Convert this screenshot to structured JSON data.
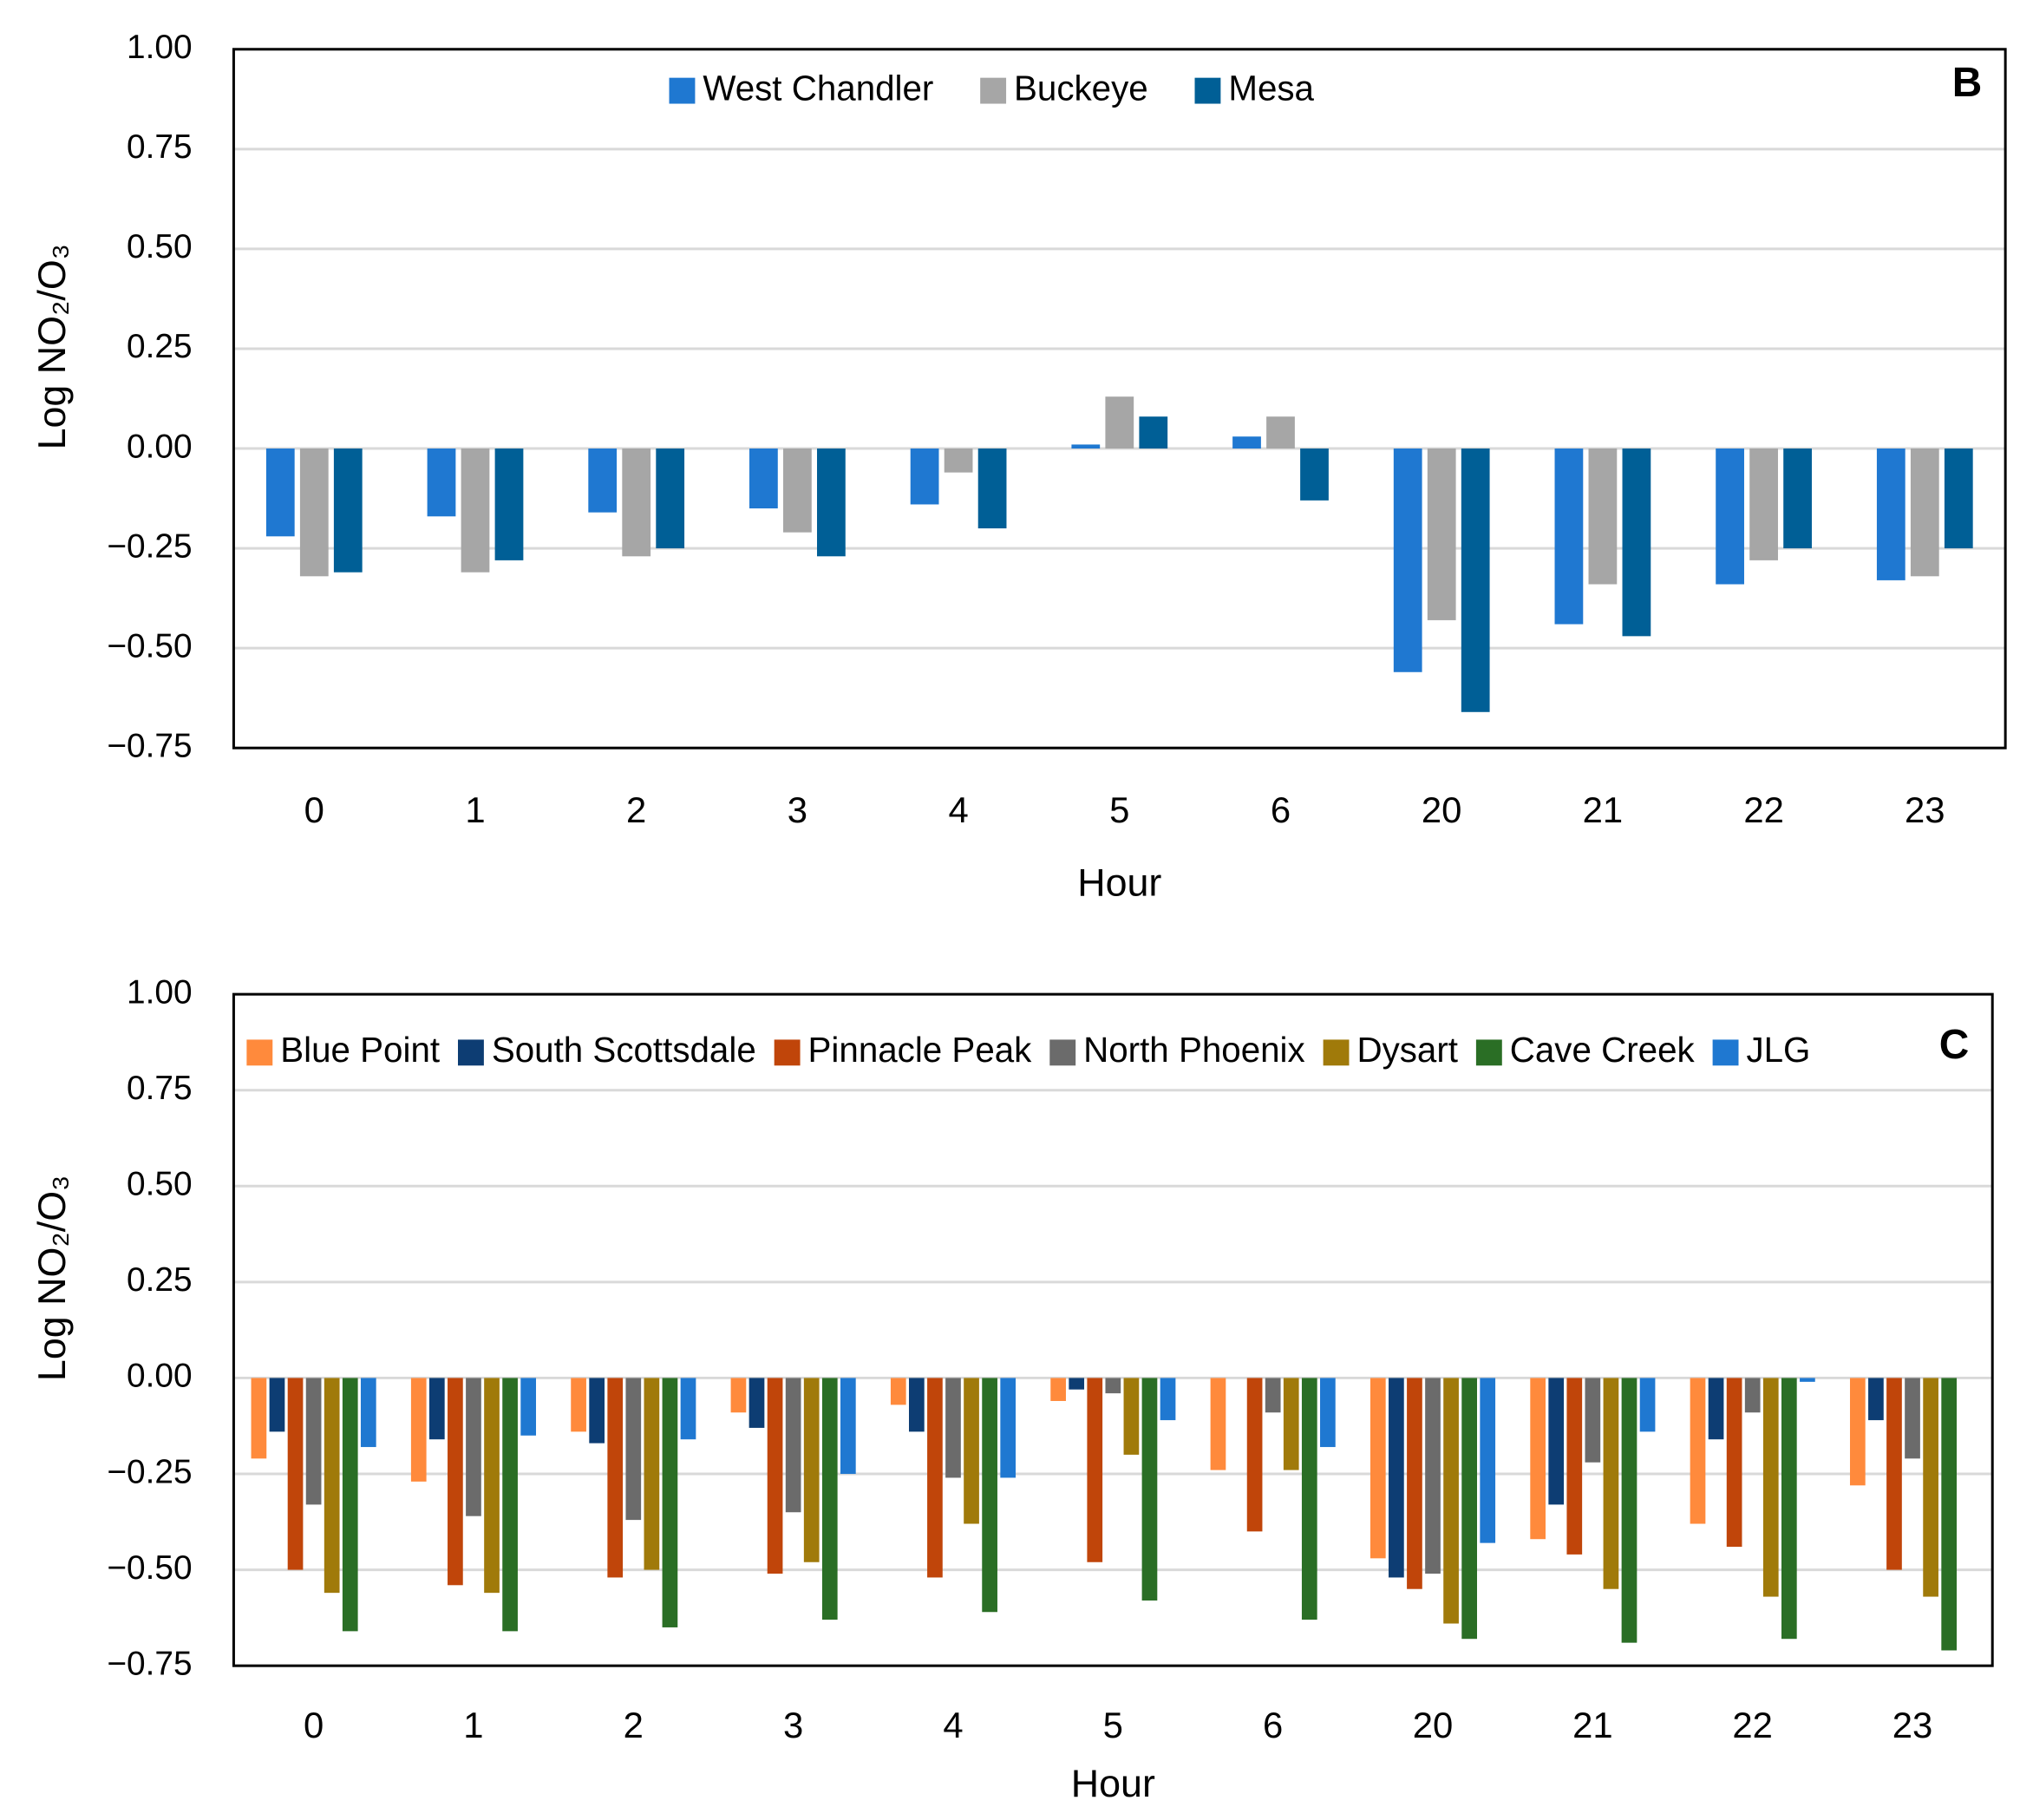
{
  "chart_data": [
    {
      "type": "bar",
      "panel_label": "B",
      "x_label": "Hour",
      "y_label": "Log NO₂/O₃",
      "legend": "top",
      "grid": true,
      "categories": [
        "0",
        "1",
        "2",
        "3",
        "4",
        "5",
        "6",
        "20",
        "21",
        "22",
        "23"
      ],
      "ylim": [
        -0.75,
        1.0
      ],
      "yticks": [
        {
          "value": 1.0,
          "label": "1.00"
        },
        {
          "value": 0.75,
          "label": "0.75"
        },
        {
          "value": 0.5,
          "label": "0.50"
        },
        {
          "value": 0.25,
          "label": "0.25"
        },
        {
          "value": 0,
          "label": "0.00"
        },
        {
          "value": -0.25,
          "label": "−0.25"
        },
        {
          "value": -0.5,
          "label": "−0.50"
        },
        {
          "value": -0.75,
          "label": "−0.75"
        }
      ],
      "series": [
        {
          "name": "West Chandler",
          "color": "#1f78d1",
          "values": [
            -0.22,
            -0.17,
            -0.16,
            -0.15,
            -0.14,
            0.01,
            0.03,
            -0.56,
            -0.44,
            -0.34,
            -0.33
          ]
        },
        {
          "name": "Buckeye",
          "color": "#a6a6a6",
          "values": [
            -0.32,
            -0.31,
            -0.27,
            -0.21,
            -0.06,
            0.13,
            0.08,
            -0.43,
            -0.34,
            -0.28,
            -0.32
          ]
        },
        {
          "name": "Mesa",
          "color": "#005f96",
          "values": [
            -0.31,
            -0.28,
            -0.25,
            -0.27,
            -0.2,
            0.08,
            -0.13,
            -0.66,
            -0.47,
            -0.25,
            -0.25
          ]
        }
      ]
    },
    {
      "type": "bar",
      "panel_label": "C",
      "x_label": "Hour",
      "y_label": "Log NO₂/O₃",
      "legend": "top",
      "grid": true,
      "categories": [
        "0",
        "1",
        "2",
        "3",
        "4",
        "5",
        "6",
        "20",
        "21",
        "22",
        "23"
      ],
      "ylim": [
        -0.75,
        1.0
      ],
      "yticks": [
        {
          "value": 1.0,
          "label": "1.00"
        },
        {
          "value": 0.75,
          "label": "0.75"
        },
        {
          "value": 0.5,
          "label": "0.50"
        },
        {
          "value": 0.25,
          "label": "0.25"
        },
        {
          "value": 0,
          "label": "0.00"
        },
        {
          "value": -0.25,
          "label": "−0.25"
        },
        {
          "value": -0.5,
          "label": "−0.50"
        },
        {
          "value": -0.75,
          "label": "−0.75"
        }
      ],
      "series": [
        {
          "name": "Blue Point",
          "color": "#ff8a3c",
          "values": [
            -0.21,
            -0.27,
            -0.14,
            -0.09,
            -0.07,
            -0.06,
            -0.24,
            -0.47,
            -0.42,
            -0.38,
            -0.28
          ]
        },
        {
          "name": "South Scottsdale",
          "color": "#0d3d73",
          "values": [
            -0.14,
            -0.16,
            -0.17,
            -0.13,
            -0.14,
            -0.03,
            null,
            -0.52,
            -0.33,
            -0.16,
            -0.11
          ]
        },
        {
          "name": "Pinnacle Peak",
          "color": "#c0450a",
          "values": [
            -0.5,
            -0.54,
            -0.52,
            -0.51,
            -0.52,
            -0.48,
            -0.4,
            -0.55,
            -0.46,
            -0.44,
            -0.5
          ]
        },
        {
          "name": "North Phoenix",
          "color": "#6b6b6b",
          "values": [
            -0.33,
            -0.36,
            -0.37,
            -0.35,
            -0.26,
            -0.04,
            -0.09,
            -0.51,
            -0.22,
            -0.09,
            -0.21
          ]
        },
        {
          "name": "Dysart",
          "color": "#a07a0a",
          "values": [
            -0.56,
            -0.56,
            -0.5,
            -0.48,
            -0.38,
            -0.2,
            -0.24,
            -0.64,
            -0.55,
            -0.57,
            -0.57
          ]
        },
        {
          "name": "Cave Creek",
          "color": "#2a6e25",
          "values": [
            -0.66,
            -0.66,
            -0.65,
            -0.63,
            -0.61,
            -0.58,
            -0.63,
            -0.68,
            -0.69,
            -0.68,
            -0.71
          ]
        },
        {
          "name": "JLG",
          "color": "#1f78d1",
          "values": [
            -0.18,
            -0.15,
            -0.16,
            -0.25,
            -0.26,
            -0.11,
            -0.18,
            -0.43,
            -0.14,
            -0.01,
            null
          ]
        }
      ]
    }
  ]
}
